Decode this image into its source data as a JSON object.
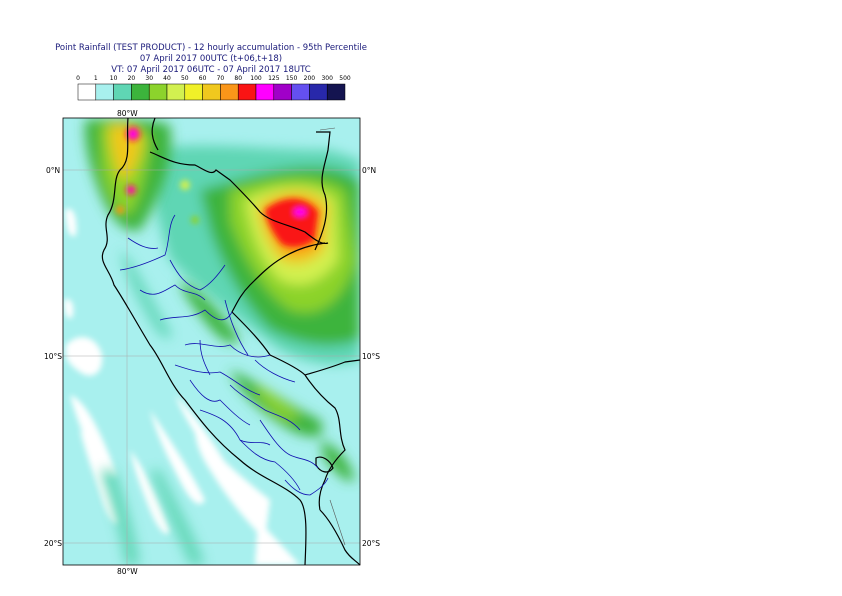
{
  "title": {
    "line1": "Point Rainfall (TEST PRODUCT) - 12 hourly accumulation - 95th Percentile",
    "line2": "07 April 2017 00UTC (t+06,t+18)",
    "line3": "VT: 07 April 2017 06UTC - 07 April 2017 18UTC"
  },
  "legend": {
    "ticks": [
      "0",
      "1",
      "10",
      "20",
      "30",
      "40",
      "50",
      "60",
      "70",
      "80",
      "100",
      "125",
      "150",
      "200",
      "300",
      "500"
    ],
    "colors": [
      "#ffffff",
      "#a8f0ee",
      "#5fd6b4",
      "#3cb43c",
      "#8cd32c",
      "#d2f050",
      "#f0f028",
      "#f0c81e",
      "#fa9619",
      "#fa1414",
      "#ff00ff",
      "#a000c8",
      "#6450f0",
      "#2828aa",
      "#141450"
    ]
  },
  "axes": {
    "top_lon": "80°W",
    "bottom_lon": "80°W",
    "lat_labels": [
      "0°N",
      "10°S",
      "20°S"
    ]
  },
  "colors": {
    "ocean_base": "#a8f0ee",
    "border_country": "#000000",
    "border_region": "#1010b0"
  }
}
